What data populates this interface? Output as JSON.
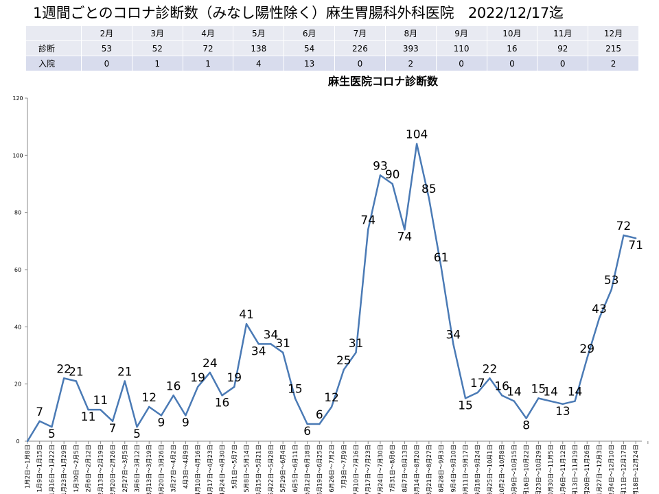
{
  "page": {
    "title": "1週間ごとのコロナ診断数（みなし陽性除く）麻生胃腸科外科医院　2022/12/17迄"
  },
  "summary_table": {
    "months": [
      "2月",
      "3月",
      "4月",
      "5月",
      "6月",
      "7月",
      "8月",
      "9月",
      "10月",
      "11月",
      "12月"
    ],
    "rows": [
      {
        "label": "診断",
        "values": [
          "53",
          "52",
          "72",
          "138",
          "54",
          "226",
          "393",
          "110",
          "16",
          "92",
          "215"
        ]
      },
      {
        "label": "入院",
        "values": [
          "0",
          "1",
          "1",
          "4",
          "13",
          "0",
          "2",
          "0",
          "0",
          "0",
          "2"
        ]
      }
    ]
  },
  "chart_data": {
    "type": "line",
    "title": "麻生医院コロナ診断数",
    "xlabel": "",
    "ylabel": "",
    "ylim": [
      0,
      120
    ],
    "yticks": [
      0,
      20,
      40,
      60,
      80,
      100,
      120
    ],
    "line_color": "#4a7ab5",
    "grid": false,
    "categories": [
      "1月2日〜1月8日",
      "1月9日〜1月15日",
      "1月16日〜1月22日",
      "1月23日〜1月29日",
      "1月30日〜2月5日",
      "2月6日〜2月12日",
      "2月13日〜2月19日",
      "2月20日〜2月26日",
      "2月27日〜3月5日",
      "3月6日〜3月12日",
      "3月13日〜3月19日",
      "3月20日〜3月26日",
      "3月27日〜4月2日",
      "4月3日〜4月9日",
      "4月10日〜4月16日",
      "4月17日〜4月23日",
      "4月24日〜4月30日",
      "5月1日〜5月7日",
      "5月8日〜5月14日",
      "5月15日〜5月21日",
      "5月22日〜5月28日",
      "5月29日〜6月4日",
      "6月5日〜6月11日",
      "6月12日〜6月18日",
      "6月19日〜6月25日",
      "6月26日〜7月2日",
      "7月3日〜7月9日",
      "7月10日〜7月16日",
      "7月17日〜7月23日",
      "7月24日〜7月30日",
      "7月31日〜8月6日",
      "8月7日〜8月13日",
      "8月14日〜8月20日",
      "8月21日〜8月27日",
      "8月28日〜9月3日",
      "9月4日〜9月10日",
      "9月11日〜9月17日",
      "9月18日〜9月24日",
      "9月25日〜10月1日",
      "10月2日〜10月8日",
      "10月9日〜10月15日",
      "10月16日〜10月22日",
      "10月23日〜10月29日",
      "10月30日〜11月5日",
      "11月6日〜11月12日",
      "11月13日〜11月19日",
      "11月20日〜11月26日",
      "11月27日〜12月3日",
      "12月4日〜12月10日",
      "12月11日〜12月17日",
      "12月18日〜12月24日"
    ],
    "values": [
      0,
      7,
      5,
      22,
      21,
      11,
      11,
      7,
      21,
      5,
      12,
      9,
      16,
      9,
      19,
      24,
      16,
      19,
      41,
      34,
      34,
      31,
      15,
      6,
      6,
      12,
      25,
      31,
      74,
      93,
      90,
      74,
      104,
      85,
      61,
      34,
      15,
      17,
      22,
      16,
      14,
      8,
      15,
      14,
      13,
      14,
      29,
      43,
      53,
      72,
      71
    ]
  }
}
